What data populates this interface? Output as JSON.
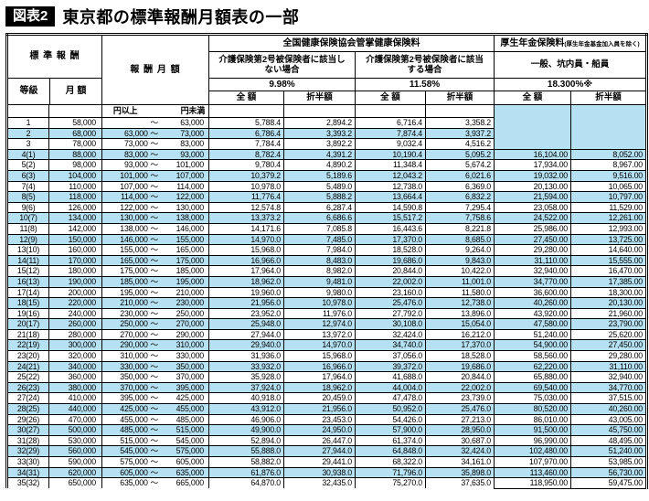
{
  "title": {
    "badge": "図表2",
    "text": "東京都の標準報酬月額表の一部"
  },
  "colors": {
    "highlight_row": "#b5e1f2",
    "badge_bg": "#000000"
  },
  "table": {
    "headers": {
      "standard_remuneration": "標 準 報 酬",
      "grade": "等級",
      "monthly_amount": "月 額",
      "remuneration_monthly": "報 酬 月 額",
      "health_group": "全国健康保険協会管掌健康保険料",
      "care_not_applicable": "介護保険第2号被保険者に該当しない場合",
      "care_applicable": "介護保険第2号被保険者に該当する場合",
      "rate_no_care": "9.98%",
      "rate_with_care": "11.58%",
      "pension_group": "厚生年金保険料",
      "pension_group_note": "(厚生年金基金加入員を除く)",
      "pension_category": "一般、坑内員・船員",
      "pension_rate": "18.300%※",
      "full_amount": "全 額",
      "half_amount": "折半額",
      "yen_or_more": "円以上",
      "yen_less_than": "円未満",
      "tilde": "～"
    },
    "row_columns": [
      "grade",
      "monthly",
      "lower",
      "upper",
      "health_998_full",
      "health_998_half",
      "health_1158_full",
      "health_1158_half",
      "pension_full",
      "pension_half",
      "highlight"
    ],
    "rows": [
      [
        "1",
        "58,000",
        "",
        "63,000",
        "5,788.4",
        "2,894.2",
        "6,716.4",
        "3,358.2",
        "",
        "",
        0
      ],
      [
        "2",
        "68,000",
        "63,000",
        "73,000",
        "6,786.4",
        "3,393.2",
        "7,874.4",
        "3,937.2",
        "",
        "",
        1
      ],
      [
        "3",
        "78,000",
        "73,000",
        "83,000",
        "7,784.4",
        "3,892.2",
        "9,032.4",
        "4,516.2",
        "",
        "",
        0
      ],
      [
        "4(1)",
        "88,000",
        "83,000",
        "93,000",
        "8,782.4",
        "4,391.2",
        "10,190.4",
        "5,095.2",
        "16,104.00",
        "8,052.00",
        1
      ],
      [
        "5(2)",
        "98,000",
        "93,000",
        "101,000",
        "9,780.4",
        "4,890.2",
        "11,348.4",
        "5,674.2",
        "17,934.00",
        "8,967.00",
        0
      ],
      [
        "6(3)",
        "104,000",
        "101,000",
        "107,000",
        "10,379.2",
        "5,189.6",
        "12,043.2",
        "6,021.6",
        "19,032.00",
        "9,516.00",
        1
      ],
      [
        "7(4)",
        "110,000",
        "107,000",
        "114,000",
        "10,978.0",
        "5,489.0",
        "12,738.0",
        "6,369.0",
        "20,130.00",
        "10,065.00",
        0
      ],
      [
        "8(5)",
        "118,000",
        "114,000",
        "122,000",
        "11,776.4",
        "5,888.2",
        "13,664.4",
        "6,832.2",
        "21,594.00",
        "10,797.00",
        1
      ],
      [
        "9(6)",
        "126,000",
        "122,000",
        "130,000",
        "12,574.8",
        "6,287.4",
        "14,590.8",
        "7,295.4",
        "23,058.00",
        "11,529.00",
        0
      ],
      [
        "10(7)",
        "134,000",
        "130,000",
        "138,000",
        "13,373.2",
        "6,686.6",
        "15,517.2",
        "7,758.6",
        "24,522.00",
        "12,261.00",
        1
      ],
      [
        "11(8)",
        "142,000",
        "138,000",
        "146,000",
        "14,171.6",
        "7,085.8",
        "16,443.6",
        "8,221.8",
        "25,986.00",
        "12,993.00",
        0
      ],
      [
        "12(9)",
        "150,000",
        "146,000",
        "155,000",
        "14,970.0",
        "7,485.0",
        "17,370.0",
        "8,685.0",
        "27,450.00",
        "13,725.00",
        1
      ],
      [
        "13(10)",
        "160,000",
        "155,000",
        "165,000",
        "15,968.0",
        "7,984.0",
        "18,528.0",
        "9,264.0",
        "29,280.00",
        "14,640.00",
        0
      ],
      [
        "14(11)",
        "170,000",
        "165,000",
        "175,000",
        "16,966.0",
        "8,483.0",
        "19,686.0",
        "9,843.0",
        "31,110.00",
        "15,555.00",
        1
      ],
      [
        "15(12)",
        "180,000",
        "175,000",
        "185,000",
        "17,964.0",
        "8,982.0",
        "20,844.0",
        "10,422.0",
        "32,940.00",
        "16,470.00",
        0
      ],
      [
        "16(13)",
        "190,000",
        "185,000",
        "195,000",
        "18,962.0",
        "9,481.0",
        "22,002.0",
        "11,001.0",
        "34,770.00",
        "17,385.00",
        1
      ],
      [
        "17(14)",
        "200,000",
        "195,000",
        "210,000",
        "19,960.0",
        "9,980.0",
        "23,160.0",
        "11,580.0",
        "36,600.00",
        "18,300.00",
        0
      ],
      [
        "18(15)",
        "220,000",
        "210,000",
        "230,000",
        "21,956.0",
        "10,978.0",
        "25,476.0",
        "12,738.0",
        "40,260.00",
        "20,130.00",
        1
      ],
      [
        "19(16)",
        "240,000",
        "230,000",
        "250,000",
        "23,952.0",
        "11,976.0",
        "27,792.0",
        "13,896.0",
        "43,920.00",
        "21,960.00",
        0
      ],
      [
        "20(17)",
        "260,000",
        "250,000",
        "270,000",
        "25,948.0",
        "12,974.0",
        "30,108.0",
        "15,054.0",
        "47,580.00",
        "23,790.00",
        1
      ],
      [
        "21(18)",
        "280,000",
        "270,000",
        "290,000",
        "27,944.0",
        "13,972.0",
        "32,424.0",
        "16,212.0",
        "51,240.00",
        "25,620.00",
        0
      ],
      [
        "22(19)",
        "300,000",
        "290,000",
        "310,000",
        "29,940.0",
        "14,970.0",
        "34,740.0",
        "17,370.0",
        "54,900.00",
        "27,450.00",
        1
      ],
      [
        "23(20)",
        "320,000",
        "310,000",
        "330,000",
        "31,936.0",
        "15,968.0",
        "37,056.0",
        "18,528.0",
        "58,560.00",
        "29,280.00",
        0
      ],
      [
        "24(21)",
        "340,000",
        "330,000",
        "350,000",
        "33,932.0",
        "16,966.0",
        "39,372.0",
        "19,686.0",
        "62,220.00",
        "31,110.00",
        1
      ],
      [
        "25(22)",
        "360,000",
        "350,000",
        "370,000",
        "35,928.0",
        "17,964.0",
        "41,688.0",
        "20,844.0",
        "65,880.00",
        "32,940.00",
        0
      ],
      [
        "26(23)",
        "380,000",
        "370,000",
        "395,000",
        "37,924.0",
        "18,962.0",
        "44,004.0",
        "22,002.0",
        "69,540.00",
        "34,770.00",
        1
      ],
      [
        "27(24)",
        "410,000",
        "395,000",
        "425,000",
        "40,918.0",
        "20,459.0",
        "47,478.0",
        "23,739.0",
        "75,030.00",
        "37,515.00",
        0
      ],
      [
        "28(25)",
        "440,000",
        "425,000",
        "455,000",
        "43,912.0",
        "21,956.0",
        "50,952.0",
        "25,476.0",
        "80,520.00",
        "40,260.00",
        1
      ],
      [
        "29(26)",
        "470,000",
        "455,000",
        "485,000",
        "46,906.0",
        "23,453.0",
        "54,426.0",
        "27,213.0",
        "86,010.00",
        "43,005.00",
        0
      ],
      [
        "30(27)",
        "500,000",
        "485,000",
        "515,000",
        "49,900.0",
        "24,950.0",
        "57,900.0",
        "28,950.0",
        "91,500.00",
        "45,750.00",
        1
      ],
      [
        "31(28)",
        "530,000",
        "515,000",
        "545,000",
        "52,894.0",
        "26,447.0",
        "61,374.0",
        "30,687.0",
        "96,990.00",
        "48,495.00",
        0
      ],
      [
        "32(29)",
        "560,000",
        "545,000",
        "575,000",
        "55,888.0",
        "27,944.0",
        "64,848.0",
        "32,424.0",
        "102,480.00",
        "51,240.00",
        1
      ],
      [
        "33(30)",
        "590,000",
        "575,000",
        "605,000",
        "58,882.0",
        "29,441.0",
        "68,322.0",
        "34,161.0",
        "107,970.00",
        "53,985.00",
        0
      ],
      [
        "34(31)",
        "620,000",
        "605,000",
        "635,000",
        "61,876.0",
        "30,938.0",
        "71,796.0",
        "35,898.0",
        "113,460.00",
        "56,730.00",
        1
      ],
      [
        "35(32)",
        "650,000",
        "635,000",
        "665,000",
        "64,870.0",
        "32,435.0",
        "75,270.0",
        "37,635.0",
        "118,950.00",
        "59,475.00",
        0
      ]
    ]
  }
}
